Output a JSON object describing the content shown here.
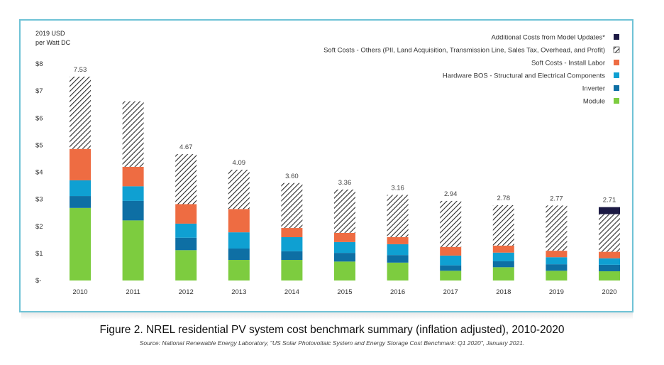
{
  "chart_data": {
    "type": "bar",
    "stacked": true,
    "ylabel": "2019 USD per Watt DC",
    "ylabel_lines": [
      "2019 USD",
      "per Watt DC"
    ],
    "ylim": [
      0,
      8
    ],
    "y_ticks": [
      {
        "value": 0,
        "label": "$-"
      },
      {
        "value": 1,
        "label": "$1"
      },
      {
        "value": 2,
        "label": "$2"
      },
      {
        "value": 3,
        "label": "$3"
      },
      {
        "value": 4,
        "label": "$4"
      },
      {
        "value": 5,
        "label": "$5"
      },
      {
        "value": 6,
        "label": "$6"
      },
      {
        "value": 7,
        "label": "$7"
      },
      {
        "value": 8,
        "label": "$8"
      }
    ],
    "categories": [
      "2010",
      "2011",
      "2012",
      "2013",
      "2014",
      "2015",
      "2016",
      "2017",
      "2018",
      "2019",
      "2020"
    ],
    "totals": [
      "7.53",
      null,
      "4.67",
      "4.09",
      "3.60",
      "3.36",
      "3.16",
      "2.94",
      "2.78",
      "2.77",
      "2.71"
    ],
    "series": [
      {
        "name": "Module",
        "color": "#7dcc3f",
        "values": [
          2.68,
          2.22,
          1.12,
          0.76,
          0.76,
          0.7,
          0.66,
          0.36,
          0.49,
          0.36,
          0.34
        ]
      },
      {
        "name": "Inverter",
        "color": "#0e6fa4",
        "values": [
          0.44,
          0.72,
          0.46,
          0.42,
          0.32,
          0.32,
          0.28,
          0.2,
          0.22,
          0.24,
          0.24
        ]
      },
      {
        "name": "Hardware BOS - Structural and Electrical Components",
        "color": "#0fa0d2",
        "values": [
          0.58,
          0.54,
          0.52,
          0.6,
          0.52,
          0.4,
          0.4,
          0.36,
          0.32,
          0.26,
          0.24
        ]
      },
      {
        "name": "Soft Costs - Install Labor",
        "color": "#ee6c42",
        "values": [
          1.16,
          0.72,
          0.72,
          0.86,
          0.34,
          0.34,
          0.26,
          0.32,
          0.26,
          0.24,
          0.24
        ]
      },
      {
        "name": "Soft Costs - Others (PII, Land Acquisition, Transmission Line, Sales Tax, Overhead, and Profit)",
        "color": "#ffffff",
        "pattern": "hatch",
        "values": [
          2.67,
          2.42,
          1.85,
          1.45,
          1.66,
          1.6,
          1.56,
          1.7,
          1.49,
          1.67,
          1.39
        ]
      },
      {
        "name": "Additional Costs from Model Updates*",
        "color": "#1c1a44",
        "values": [
          0,
          0,
          0,
          0,
          0,
          0,
          0,
          0,
          0,
          0,
          0.26
        ]
      }
    ],
    "legend_order": [
      5,
      4,
      3,
      2,
      1,
      0
    ],
    "legend_position": "top-right"
  },
  "caption": "Figure 2. NREL residential PV system cost benchmark summary (inflation adjusted), 2010-2020",
  "source": "Source: National Renewable Energy Laboratory, \"US Solar Photovoltaic System and Energy Storage Cost Benchmark: Q1 2020\", January 2021."
}
